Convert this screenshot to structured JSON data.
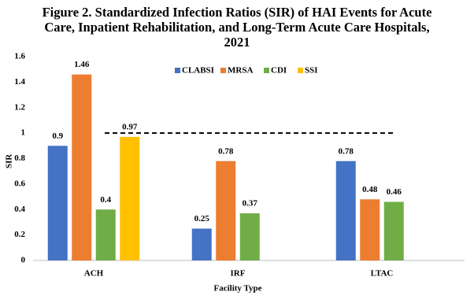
{
  "chart_data": {
    "type": "bar",
    "title": "Figure 2. Standardized Infection Ratios (SIR) of HAI Events for Acute Care, Inpatient Rehabilitation, and Long-Term Acute Care Hospitals, 2021",
    "x_label": "Facility Type",
    "y_label": "SIR",
    "categories": [
      "ACH",
      "IRF",
      "LTAC"
    ],
    "series": [
      {
        "name": "CLABSI",
        "color": "#4472c4",
        "values": [
          0.9,
          0.25,
          0.78
        ]
      },
      {
        "name": "MRSA",
        "color": "#ed7d31",
        "values": [
          1.46,
          0.78,
          0.48
        ]
      },
      {
        "name": "CDI",
        "color": "#70ad47",
        "values": [
          0.4,
          0.37,
          0.46
        ]
      },
      {
        "name": "SSI",
        "color": "#ffc000",
        "values": [
          0.97,
          null,
          null
        ]
      }
    ],
    "reference_line": 1,
    "ylim": [
      0,
      1.6
    ],
    "yticks": [
      0,
      0.2,
      0.4,
      0.6,
      0.8,
      1,
      1.2,
      1.4,
      1.6
    ],
    "grid": false,
    "legend": "top"
  }
}
